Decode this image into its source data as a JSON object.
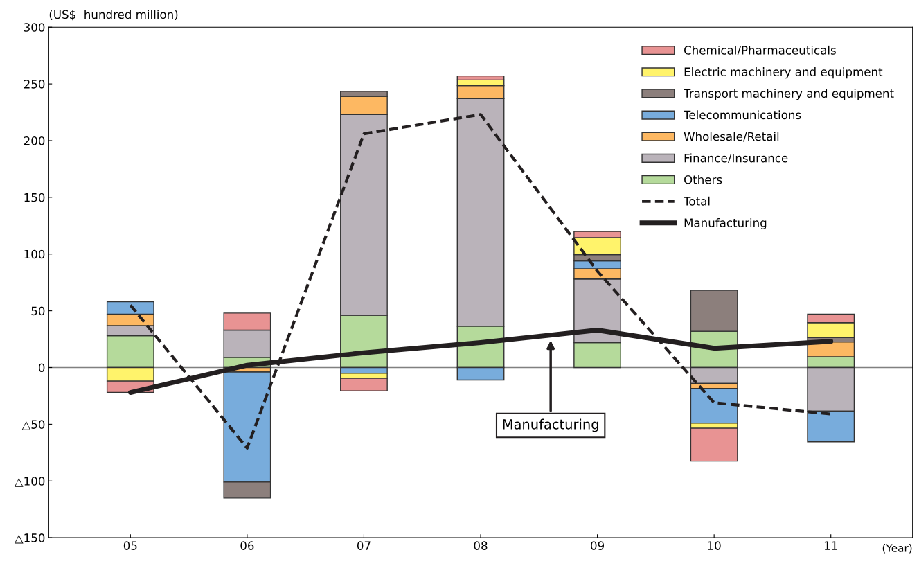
{
  "chart_data": {
    "type": "bar",
    "stacked": true,
    "ylabel": "(US$  hundred million)",
    "xlabel": "(Year)",
    "categories": [
      "05",
      "06",
      "07",
      "08",
      "09",
      "10",
      "11"
    ],
    "series": [
      {
        "name": "Others",
        "color": "#b5da9b",
        "values": [
          28,
          9,
          46,
          36.5,
          22,
          32,
          9.5
        ]
      },
      {
        "name": "Finance/Insurance",
        "color": "#bab3ba",
        "values": [
          9,
          24,
          177,
          200.5,
          56,
          -14,
          -38.5
        ]
      },
      {
        "name": "Wholesale/Retail",
        "color": "#fdb862",
        "values": [
          10,
          -4,
          16,
          11.5,
          9,
          -4.5,
          13
        ]
      },
      {
        "name": "Telecommunications",
        "color": "#78acdc",
        "values": [
          11,
          -97,
          -5,
          -11,
          7,
          -30.5,
          -27
        ]
      },
      {
        "name": "Transport machinery and equipment",
        "color": "#8c7f7c",
        "values": [
          null,
          -14,
          4.5,
          null,
          5.5,
          36,
          4
        ]
      },
      {
        "name": "Electric machinery and equipment",
        "color": "#fff36b",
        "values": [
          -12,
          null,
          -4.5,
          5,
          15,
          -4.5,
          13
        ]
      },
      {
        "name": "Chemical/Pharmaceuticals",
        "color": "#e89393",
        "values": [
          -10,
          15,
          -11,
          3.5,
          5.5,
          -29,
          7.5
        ]
      },
      {
        "name": "Total",
        "type": "line",
        "line_style": "dashed",
        "color": "#231f20",
        "values": [
          55,
          -71,
          206,
          223,
          85,
          -31,
          -41
        ]
      },
      {
        "name": "Manufacturing",
        "type": "line",
        "line_style": "solid",
        "color": "#231f20",
        "values": [
          -22,
          2,
          13,
          22,
          33,
          17,
          23
        ]
      }
    ],
    "ylim": [
      -150,
      300
    ],
    "yticks": [
      {
        "value": -150,
        "label": "△150"
      },
      {
        "value": -100,
        "label": "△100"
      },
      {
        "value": -50,
        "label": "△50"
      },
      0,
      50,
      100,
      150,
      200,
      250,
      300
    ],
    "ref_lines": [
      {
        "axis": "y",
        "value": 0,
        "color": "#808080"
      }
    ],
    "annotations": [
      "Manufacturing"
    ],
    "grid": false,
    "legend": "top right",
    "marker": "none"
  }
}
